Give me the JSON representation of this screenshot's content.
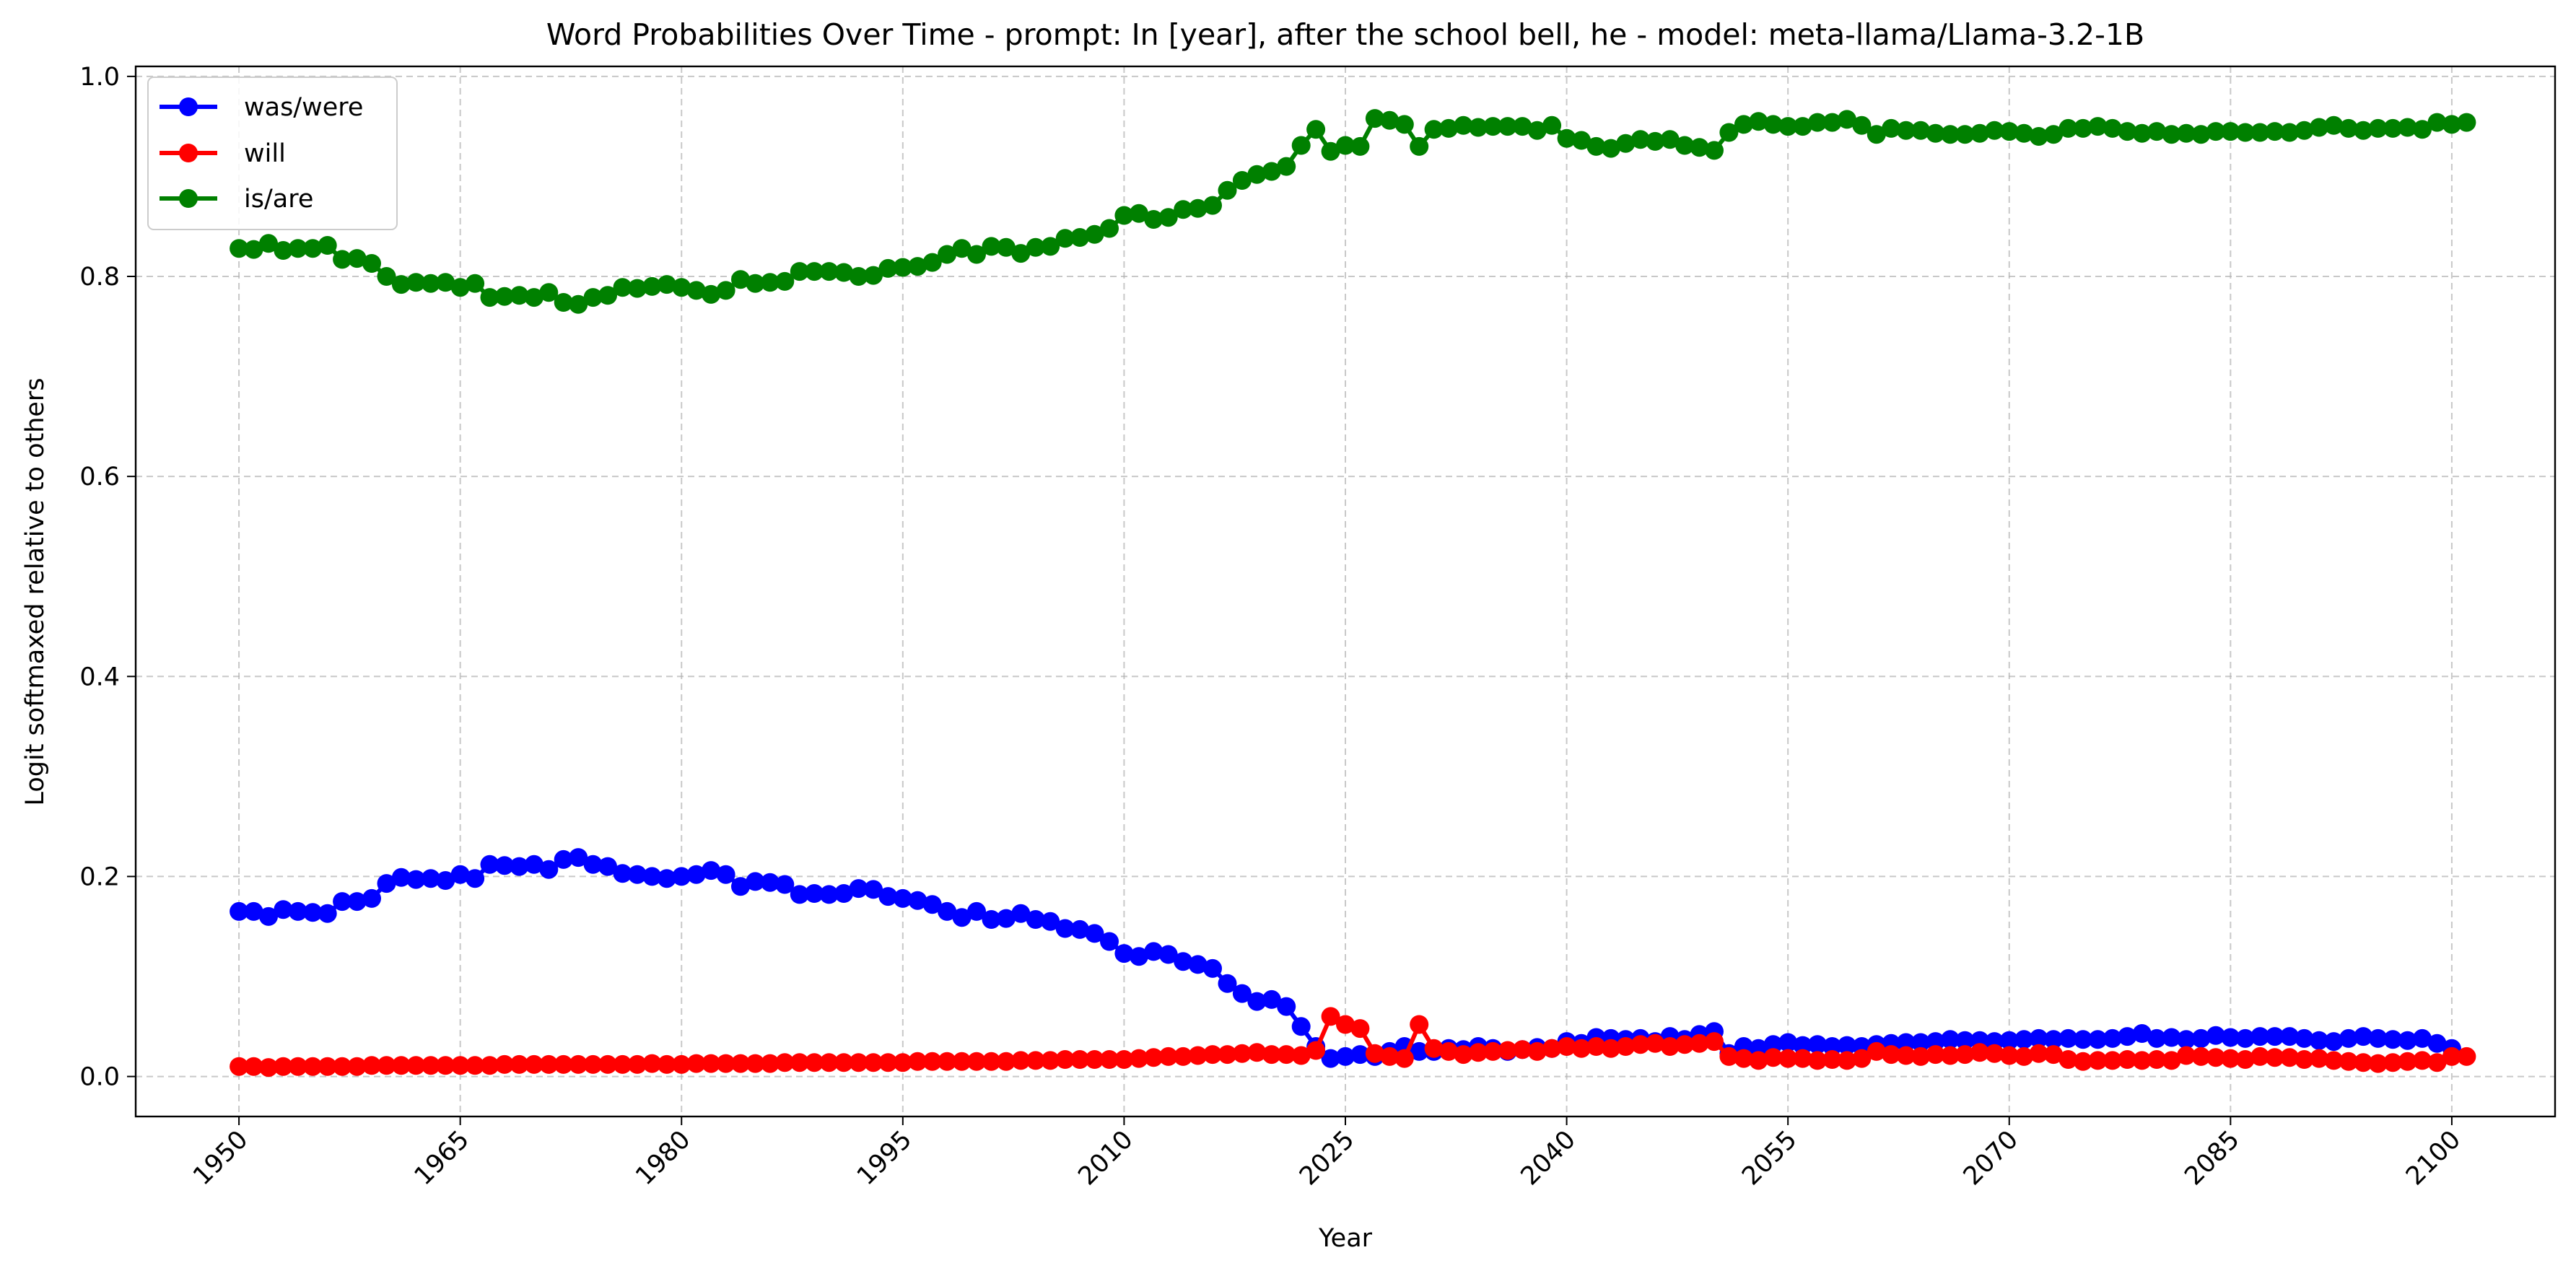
{
  "chart_data": {
    "type": "line",
    "title": "Word Probabilities Over Time - prompt: In [year], after the school bell, he - model: meta-llama/Llama-3.2-1B",
    "xlabel": "Year",
    "ylabel": "Logit softmaxed relative to others",
    "xlim": [
      1943,
      2107
    ],
    "ylim": [
      -0.04,
      1.01
    ],
    "xticks": [
      1950,
      1965,
      1980,
      1995,
      2010,
      2025,
      2040,
      2055,
      2070,
      2085,
      2100
    ],
    "xtick_labels": [
      "1950",
      "1965",
      "1980",
      "1995",
      "2010",
      "2025",
      "2040",
      "2055",
      "2070",
      "2085",
      "2100"
    ],
    "yticks": [
      0.0,
      0.2,
      0.4,
      0.6,
      0.8,
      1.0
    ],
    "ytick_labels": [
      "0.0",
      "0.2",
      "0.4",
      "0.6",
      "0.8",
      "1.0"
    ],
    "grid": true,
    "legend_position": "top-left",
    "x_start": 1950,
    "x_step": 1,
    "series": [
      {
        "name": "was/were",
        "color": "#0000ff",
        "values": [
          0.165,
          0.165,
          0.16,
          0.167,
          0.165,
          0.164,
          0.163,
          0.175,
          0.175,
          0.178,
          0.193,
          0.199,
          0.197,
          0.198,
          0.196,
          0.202,
          0.198,
          0.212,
          0.211,
          0.21,
          0.212,
          0.207,
          0.217,
          0.219,
          0.212,
          0.21,
          0.203,
          0.202,
          0.2,
          0.198,
          0.2,
          0.202,
          0.206,
          0.202,
          0.19,
          0.195,
          0.194,
          0.192,
          0.182,
          0.183,
          0.182,
          0.183,
          0.188,
          0.187,
          0.18,
          0.178,
          0.176,
          0.172,
          0.165,
          0.159,
          0.165,
          0.157,
          0.158,
          0.163,
          0.157,
          0.155,
          0.148,
          0.147,
          0.143,
          0.135,
          0.123,
          0.12,
          0.125,
          0.122,
          0.115,
          0.112,
          0.108,
          0.093,
          0.083,
          0.075,
          0.077,
          0.07,
          0.05,
          0.03,
          0.018,
          0.02,
          0.022,
          0.02,
          0.025,
          0.03,
          0.025,
          0.025,
          0.028,
          0.027,
          0.03,
          0.028,
          0.025,
          0.027,
          0.029,
          0.028,
          0.035,
          0.033,
          0.039,
          0.038,
          0.037,
          0.038,
          0.035,
          0.04,
          0.037,
          0.042,
          0.045,
          0.023,
          0.03,
          0.028,
          0.032,
          0.034,
          0.031,
          0.032,
          0.03,
          0.031,
          0.03,
          0.032,
          0.033,
          0.034,
          0.034,
          0.035,
          0.037,
          0.036,
          0.036,
          0.035,
          0.036,
          0.037,
          0.038,
          0.037,
          0.038,
          0.037,
          0.037,
          0.038,
          0.04,
          0.043,
          0.038,
          0.039,
          0.037,
          0.038,
          0.041,
          0.039,
          0.038,
          0.04,
          0.04,
          0.04,
          0.038,
          0.036,
          0.035,
          0.038,
          0.04,
          0.038,
          0.037,
          0.036,
          0.038,
          0.033,
          0.028
        ]
      },
      {
        "name": "will",
        "color": "#ff0000",
        "values": [
          0.01,
          0.01,
          0.009,
          0.01,
          0.01,
          0.01,
          0.01,
          0.01,
          0.01,
          0.011,
          0.011,
          0.011,
          0.011,
          0.011,
          0.011,
          0.011,
          0.011,
          0.011,
          0.012,
          0.012,
          0.012,
          0.012,
          0.012,
          0.012,
          0.012,
          0.012,
          0.012,
          0.012,
          0.013,
          0.012,
          0.012,
          0.013,
          0.013,
          0.013,
          0.013,
          0.013,
          0.013,
          0.014,
          0.014,
          0.014,
          0.014,
          0.014,
          0.014,
          0.014,
          0.014,
          0.014,
          0.015,
          0.015,
          0.015,
          0.015,
          0.015,
          0.015,
          0.015,
          0.016,
          0.016,
          0.016,
          0.017,
          0.017,
          0.017,
          0.017,
          0.017,
          0.018,
          0.019,
          0.02,
          0.02,
          0.021,
          0.022,
          0.022,
          0.023,
          0.024,
          0.022,
          0.022,
          0.021,
          0.026,
          0.06,
          0.052,
          0.048,
          0.023,
          0.02,
          0.018,
          0.052,
          0.028,
          0.025,
          0.022,
          0.024,
          0.025,
          0.026,
          0.027,
          0.025,
          0.028,
          0.03,
          0.028,
          0.03,
          0.028,
          0.03,
          0.032,
          0.033,
          0.03,
          0.032,
          0.033,
          0.035,
          0.02,
          0.018,
          0.016,
          0.019,
          0.018,
          0.018,
          0.016,
          0.017,
          0.016,
          0.018,
          0.025,
          0.022,
          0.021,
          0.02,
          0.022,
          0.021,
          0.022,
          0.024,
          0.023,
          0.021,
          0.02,
          0.023,
          0.022,
          0.017,
          0.015,
          0.016,
          0.016,
          0.017,
          0.016,
          0.017,
          0.016,
          0.021,
          0.02,
          0.019,
          0.018,
          0.017,
          0.02,
          0.019,
          0.019,
          0.017,
          0.018,
          0.016,
          0.015,
          0.014,
          0.013,
          0.014,
          0.015,
          0.016,
          0.014,
          0.02,
          0.02
        ]
      },
      {
        "name": "is/are",
        "color": "#008000",
        "values": [
          0.828,
          0.827,
          0.833,
          0.826,
          0.828,
          0.828,
          0.831,
          0.817,
          0.818,
          0.813,
          0.8,
          0.792,
          0.794,
          0.793,
          0.794,
          0.789,
          0.793,
          0.779,
          0.78,
          0.781,
          0.779,
          0.784,
          0.774,
          0.772,
          0.779,
          0.781,
          0.789,
          0.788,
          0.79,
          0.792,
          0.789,
          0.786,
          0.782,
          0.786,
          0.797,
          0.793,
          0.794,
          0.795,
          0.805,
          0.805,
          0.805,
          0.804,
          0.8,
          0.801,
          0.808,
          0.809,
          0.81,
          0.814,
          0.822,
          0.828,
          0.822,
          0.83,
          0.829,
          0.823,
          0.829,
          0.83,
          0.838,
          0.839,
          0.842,
          0.848,
          0.861,
          0.863,
          0.857,
          0.859,
          0.867,
          0.868,
          0.871,
          0.886,
          0.896,
          0.902,
          0.905,
          0.91,
          0.931,
          0.947,
          0.925,
          0.931,
          0.93,
          0.958,
          0.956,
          0.952,
          0.93,
          0.947,
          0.948,
          0.951,
          0.949,
          0.95,
          0.95,
          0.95,
          0.946,
          0.951,
          0.938,
          0.936,
          0.93,
          0.928,
          0.933,
          0.937,
          0.935,
          0.937,
          0.931,
          0.929,
          0.926,
          0.944,
          0.952,
          0.955,
          0.952,
          0.95,
          0.95,
          0.954,
          0.954,
          0.957,
          0.951,
          0.942,
          0.948,
          0.946,
          0.946,
          0.943,
          0.942,
          0.942,
          0.943,
          0.946,
          0.945,
          0.943,
          0.94,
          0.942,
          0.948,
          0.948,
          0.95,
          0.948,
          0.945,
          0.943,
          0.945,
          0.942,
          0.943,
          0.942,
          0.945,
          0.945,
          0.944,
          0.944,
          0.945,
          0.944,
          0.946,
          0.949,
          0.951,
          0.948,
          0.946,
          0.948,
          0.948,
          0.949,
          0.947,
          0.954,
          0.952,
          0.954
        ]
      }
    ]
  }
}
